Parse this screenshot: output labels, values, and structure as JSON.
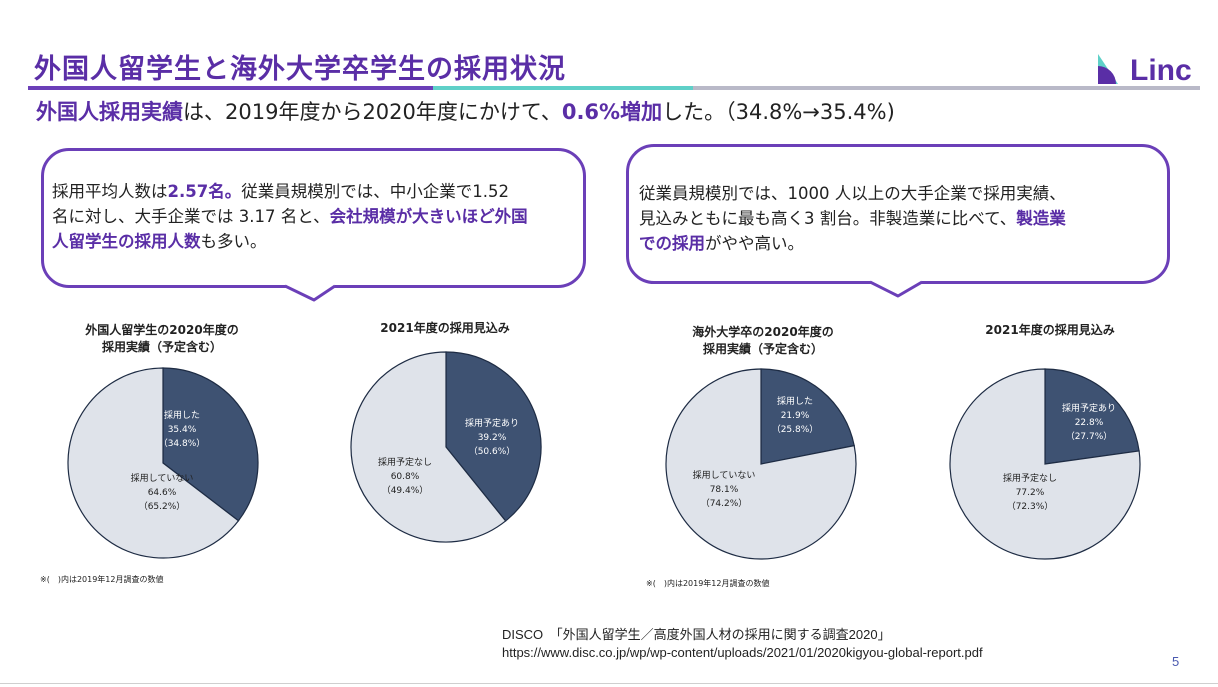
{
  "header": {
    "title": "外国人留学生と海外大学卒学生の採用状況",
    "logo_text": "Linc"
  },
  "summary": {
    "part1": "外国人採用実績",
    "part2": "は、2019年度から2020年度にかけて、",
    "part3": "0.6%増加",
    "part4": "した。（34.8%→35.4%)"
  },
  "bubble_left": {
    "t1": "採用平均人数は",
    "t2": "2.57名。",
    "t3": "従業員規模別では、中小企業で1.52",
    "t4": "名に対し、大手企業では 3.17 名と、",
    "t5": "会社規模が大きいほど外国",
    "t6": "人留学生の採用人数",
    "t7": "も多い。"
  },
  "bubble_right": {
    "t1": "従業員規模別では、1000 人以上の大手企業で採用実績、",
    "t2": "見込みともに最も高く3 割台。非製造業に比べて、",
    "t3": "製造業",
    "t4": "での採用",
    "t5": "がやや高い。"
  },
  "notes": {
    "left": "※(　)内は2019年12月調査の数値",
    "right": "※(　)内は2019年12月調査の数値"
  },
  "source": {
    "line1": "DISCO　「外国人留学生／高度外国人材の採用に関する調査2020」",
    "line2": "https://www.disc.co.jp/wp/wp-content/uploads/2021/01/2020kigyou-global-report.pdf"
  },
  "page_number": "5",
  "colors": {
    "accent": "#5a2ea6",
    "teal": "#5fd0c8",
    "slice_dark": "#3e5272",
    "slice_light": "#dfe3ea"
  },
  "chart_data": [
    {
      "type": "pie",
      "title_lines": [
        "外国人留学生の2020年度の",
        "採用実績（予定含む）"
      ],
      "slices": [
        {
          "label": "採用した",
          "value": 35.4,
          "prev": "（34.8%）"
        },
        {
          "label": "採用していない",
          "value": 64.6,
          "prev": "（65.2%）"
        }
      ]
    },
    {
      "type": "pie",
      "title_lines": [
        "2021年度の採用見込み"
      ],
      "slices": [
        {
          "label": "採用予定あり",
          "value": 39.2,
          "prev": "（50.6%）"
        },
        {
          "label": "採用予定なし",
          "value": 60.8,
          "prev": "（49.4%）"
        }
      ]
    },
    {
      "type": "pie",
      "title_lines": [
        "海外大学卒の2020年度の",
        "採用実績（予定含む）"
      ],
      "slices": [
        {
          "label": "採用した",
          "value": 21.9,
          "prev": "（25.8%）"
        },
        {
          "label": "採用していない",
          "value": 78.1,
          "prev": "（74.2%）"
        }
      ]
    },
    {
      "type": "pie",
      "title_lines": [
        "2021年度の採用見込み"
      ],
      "slices": [
        {
          "label": "採用予定あり",
          "value": 22.8,
          "prev": "（27.7%）"
        },
        {
          "label": "採用予定なし",
          "value": 77.2,
          "prev": "（72.3%）"
        }
      ]
    }
  ]
}
